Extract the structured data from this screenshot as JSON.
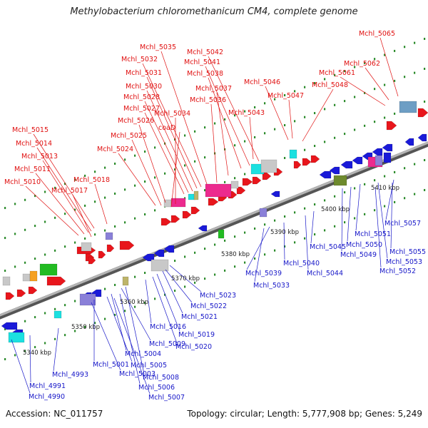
{
  "title": "Methylobacterium chloromethanicum CM4, complete genome",
  "footer": {
    "accession": "Accession: NC_011757",
    "stats": "Topology: circular; Length: 5,777,908 bp; Genes: 5,249"
  },
  "colors": {
    "forward": "#e8161c",
    "reverse": "#1a1ad8",
    "pink": "#ec2a8e",
    "cyan": "#1ce0e0",
    "green": "#22bb22",
    "olive": "#6e8a2e",
    "gray": "#c8c8c8",
    "khaki": "#bdb46a",
    "lavender": "#8a80d8",
    "steel": "#6e9ec4",
    "orange": "#f5a020",
    "backbone": "#9a9a9a",
    "forward_label": "#e01010",
    "reverse_label": "#1616c8"
  },
  "scale_labels": [
    "5340 kbp",
    "5350 kbp",
    "5360 kbp",
    "5370 kbp",
    "5380 kbp",
    "5390 kbp",
    "5400 kbp",
    "5410 kbp"
  ],
  "forward_labels": [
    "Mchl_5065",
    "Mchl_5062",
    "Mchl_5061",
    "Mchl_5048",
    "Mchl_5047",
    "Mchl_5046",
    "Mchl_5043",
    "Mchl_5042",
    "Mchl_5041",
    "Mchl_5038",
    "Mchl_5037",
    "Mchl_5036",
    "Mchl_5035",
    "Mchl_5032",
    "Mchl_5031",
    "Mchl_5030",
    "Mchl_5028",
    "Mchl_5027",
    "Mchl_5034",
    "coaD",
    "Mchl_5026",
    "Mchl_5025",
    "Mchl_5024",
    "Mchl_5015",
    "Mchl_5014",
    "Mchl_5013",
    "Mchl_5011",
    "Mchl_5018",
    "Mchl_5010",
    "Mchl_5017"
  ],
  "reverse_labels": [
    "Mchl_5057",
    "Mchl_5055",
    "Mchl_5051",
    "Mchl_5053",
    "Mchl_5050",
    "Mchl_5052",
    "Mchl_5049",
    "Mchl_5045",
    "Mchl_5044",
    "Mchl_5040",
    "Mchl_5039",
    "Mchl_5033",
    "Mchl_5023",
    "Mchl_5022",
    "Mchl_5021",
    "Mchl_5019",
    "Mchl_5016",
    "Mchl_5020",
    "Mchl_5009",
    "Mchl_5004",
    "Mchl_5005",
    "Mchl_5001",
    "Mchl_5003",
    "Mchl_5008",
    "Mchl_5006",
    "Mchl_5007",
    "Mchl_4993",
    "Mchl_4991",
    "Mchl_4990"
  ]
}
